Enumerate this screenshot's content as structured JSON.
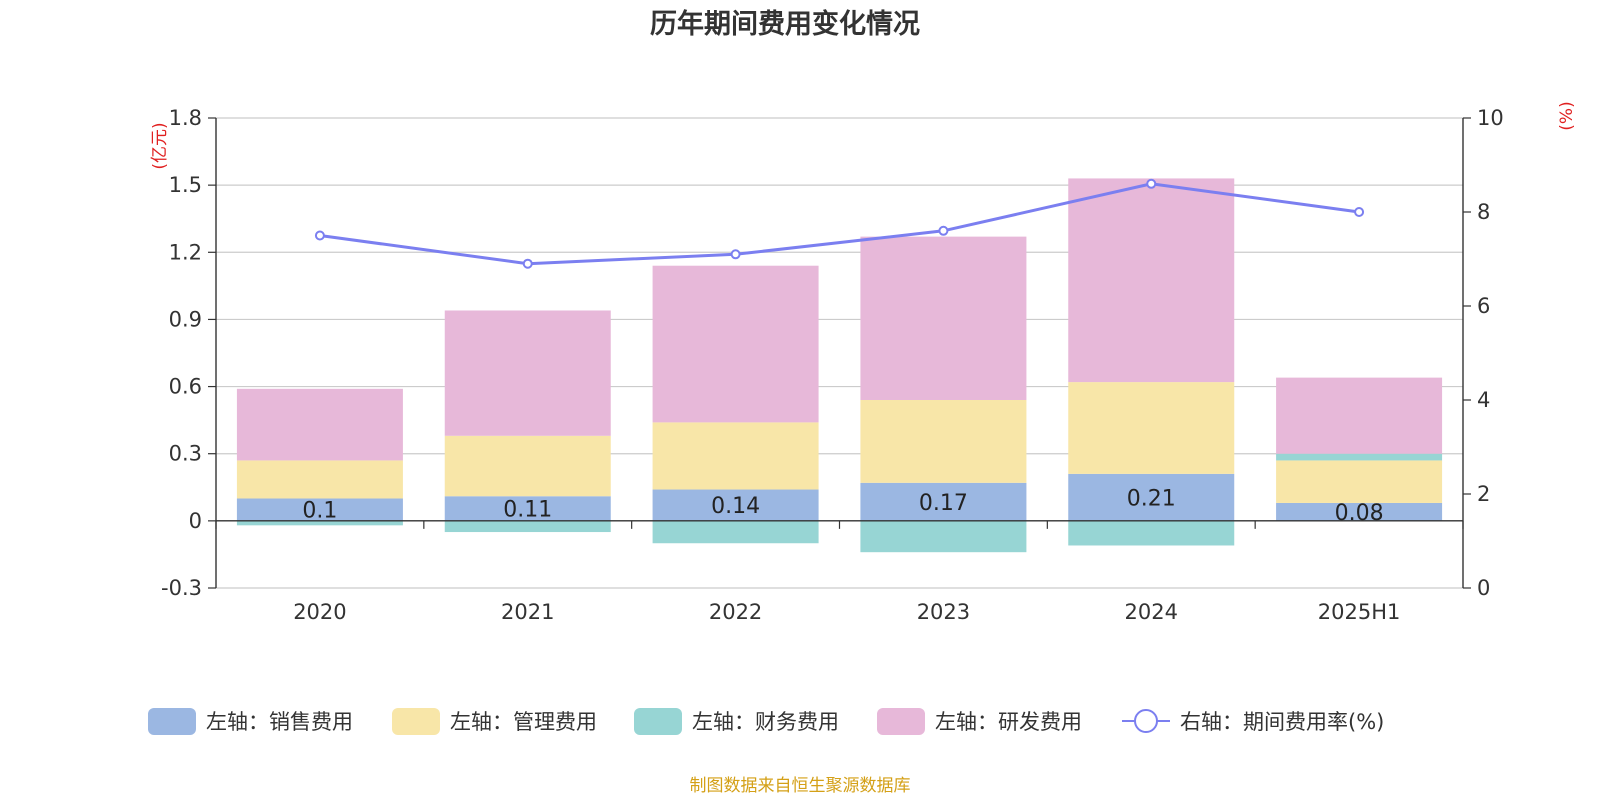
{
  "chart_data": {
    "type": "bar",
    "title": "历年期间费用变化情况",
    "categories": [
      "2020",
      "2021",
      "2022",
      "2023",
      "2024",
      "2025H1"
    ],
    "series": [
      {
        "name": "左轴：销售费用",
        "axis": "left",
        "color": "#9bb7e2",
        "values": [
          0.1,
          0.11,
          0.14,
          0.17,
          0.21,
          0.08
        ]
      },
      {
        "name": "左轴：管理费用",
        "axis": "left",
        "color": "#f8e6a8",
        "values": [
          0.17,
          0.27,
          0.3,
          0.37,
          0.41,
          0.19
        ]
      },
      {
        "name": "左轴：财务费用",
        "axis": "left",
        "color": "#97d5d4",
        "values": [
          -0.02,
          -0.05,
          -0.1,
          -0.14,
          -0.11,
          0.03
        ]
      },
      {
        "name": "左轴：研发费用",
        "axis": "left",
        "color": "#e7b8d9",
        "values": [
          0.32,
          0.56,
          0.7,
          0.73,
          0.91,
          0.34
        ]
      },
      {
        "name": "右轴：期间费用率(%)",
        "axis": "right",
        "type": "line",
        "color": "#7b7ff0",
        "values": [
          7.5,
          6.9,
          7.1,
          7.6,
          8.6,
          8.0
        ]
      }
    ],
    "data_labels_series": "左轴：销售费用",
    "y_left": {
      "unit": "(亿元)",
      "ylim": [
        -0.3,
        1.8
      ],
      "ticks": [
        "1.8",
        "1.5",
        "1.2",
        "0.9",
        "0.6",
        "0.3",
        "0",
        "-0.3"
      ]
    },
    "y_right": {
      "unit": "(%)",
      "ylim": [
        0,
        10
      ],
      "ticks": [
        "10",
        "8",
        "6",
        "4",
        "2",
        "0"
      ]
    },
    "grid": true,
    "legend_position": "bottom",
    "source": "制图数据来自恒生聚源数据库",
    "colors": {
      "title": "#333333",
      "axis": "#333333",
      "grid": "#cccccc",
      "unit": "#e02020",
      "source": "#d4a017"
    }
  }
}
